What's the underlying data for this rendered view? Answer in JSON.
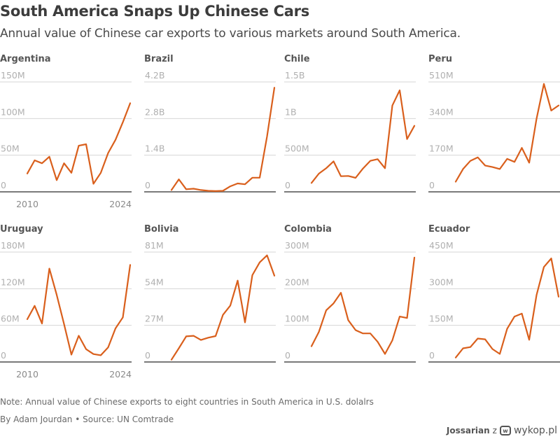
{
  "header": {
    "title": "South America Snaps Up Chinese Cars",
    "subtitle": "Annual value of Chinese car exports to various markets around South America."
  },
  "footer": {
    "note": "Note: Annual value of Chinese exports to eight countries in South America in U.S. dolalrs",
    "byline": "By Adam Jourdan • Source: UN Comtrade"
  },
  "watermark": {
    "user": "Jossarian",
    "joiner": "z",
    "logo_icon": "wykop-logo-icon",
    "logo_glyph": "w",
    "site": "wykop.pl"
  },
  "colors": {
    "line": "#d95f1c",
    "grid": "#d6d6d6",
    "baseline": "#7a7a7a"
  },
  "chart_data": [
    {
      "type": "line",
      "title": "Argentina",
      "unit": "USD millions",
      "x": [
        2010,
        2011,
        2012,
        2013,
        2014,
        2015,
        2016,
        2017,
        2018,
        2019,
        2020,
        2021,
        2022,
        2023,
        2024
      ],
      "values": [
        25,
        43,
        39,
        48,
        16,
        39,
        26,
        63,
        65,
        11,
        26,
        53,
        71,
        95,
        121
      ],
      "yticks": [
        0,
        50,
        100,
        150
      ],
      "ytick_labels": [
        "0",
        "50M",
        "100M",
        "150M"
      ],
      "ylim": [
        0,
        150
      ],
      "xtick_labels": [
        "2010",
        "2024"
      ],
      "grid": true
    },
    {
      "type": "line",
      "title": "Brazil",
      "unit": "USD millions",
      "x": [
        2010,
        2011,
        2012,
        2013,
        2014,
        2015,
        2016,
        2017,
        2018,
        2019,
        2020,
        2021,
        2022,
        2023,
        2024
      ],
      "values": [
        70,
        480,
        100,
        120,
        70,
        40,
        30,
        40,
        210,
        320,
        290,
        540,
        540,
        2120,
        3980
      ],
      "yticks": [
        0,
        1400,
        2800,
        4200
      ],
      "ytick_labels": [
        "0",
        "1.4B",
        "2.8B",
        "4.2B"
      ],
      "ylim": [
        0,
        4200
      ],
      "xtick_labels": [],
      "grid": true
    },
    {
      "type": "line",
      "title": "Chile",
      "unit": "USD millions",
      "x": [
        2010,
        2011,
        2012,
        2013,
        2014,
        2015,
        2016,
        2017,
        2018,
        2019,
        2020,
        2021,
        2022,
        2023,
        2024
      ],
      "values": [
        121,
        248,
        322,
        417,
        213,
        217,
        191,
        318,
        423,
        446,
        322,
        1178,
        1385,
        720,
        901
      ],
      "yticks": [
        0,
        500,
        1000,
        1500
      ],
      "ytick_labels": [
        "0",
        "500M",
        "1B",
        "1.5B"
      ],
      "ylim": [
        0,
        1500
      ],
      "xtick_labels": [],
      "grid": true
    },
    {
      "type": "line",
      "title": "Peru",
      "unit": "USD millions",
      "x": [
        2010,
        2011,
        2012,
        2013,
        2014,
        2015,
        2016,
        2017,
        2018,
        2019,
        2020,
        2021,
        2022,
        2023,
        2024
      ],
      "values": [
        47,
        106,
        144,
        160,
        122,
        115,
        106,
        153,
        139,
        204,
        135,
        339,
        501,
        377,
        401
      ],
      "yticks": [
        0,
        170,
        340,
        510
      ],
      "ytick_labels": [
        "0",
        "170M",
        "340M",
        "510M"
      ],
      "ylim": [
        0,
        510
      ],
      "xtick_labels": [],
      "grid": true
    },
    {
      "type": "line",
      "title": "Uruguay",
      "unit": "USD millions",
      "x": [
        2010,
        2011,
        2012,
        2013,
        2014,
        2015,
        2016,
        2017,
        2018,
        2019,
        2020,
        2021,
        2022,
        2023,
        2024
      ],
      "values": [
        70,
        92,
        63,
        153,
        110,
        62,
        12,
        43,
        21,
        13,
        11,
        24,
        55,
        73,
        159
      ],
      "yticks": [
        0,
        60,
        120,
        180
      ],
      "ytick_labels": [
        "0",
        "60M",
        "120M",
        "180M"
      ],
      "ylim": [
        0,
        180
      ],
      "xtick_labels": [
        "2010",
        "2024"
      ],
      "grid": true
    },
    {
      "type": "line",
      "title": "Bolivia",
      "unit": "USD millions",
      "x": [
        2010,
        2011,
        2012,
        2013,
        2014,
        2015,
        2016,
        2017,
        2018,
        2019,
        2020,
        2021,
        2022,
        2023,
        2024
      ],
      "values": [
        1.7,
        10.1,
        18.9,
        19.3,
        16.2,
        17.9,
        19.1,
        34.7,
        41.6,
        60.0,
        29.2,
        64.0,
        73.4,
        78.6,
        63.6
      ],
      "yticks": [
        0,
        27,
        54,
        81
      ],
      "ytick_labels": [
        "0",
        "27M",
        "54M",
        "81M"
      ],
      "ylim": [
        0,
        81
      ],
      "xtick_labels": [],
      "grid": true
    },
    {
      "type": "line",
      "title": "Colombia",
      "unit": "USD millions",
      "x": [
        2010,
        2011,
        2012,
        2013,
        2014,
        2015,
        2016,
        2017,
        2018,
        2019,
        2020,
        2021,
        2022,
        2023,
        2024
      ],
      "values": [
        43,
        82,
        141,
        160,
        189,
        114,
        87,
        78,
        78,
        55,
        22,
        59,
        124,
        120,
        285
      ],
      "yticks": [
        0,
        100,
        200,
        300
      ],
      "ytick_labels": [
        "0",
        "100M",
        "200M",
        "300M"
      ],
      "ylim": [
        0,
        300
      ],
      "xtick_labels": [],
      "grid": true
    },
    {
      "type": "line",
      "title": "Ecuador",
      "unit": "USD millions",
      "x": [
        2010,
        2011,
        2012,
        2013,
        2014,
        2015,
        2016,
        2017,
        2018,
        2019,
        2020,
        2021,
        2022,
        2023,
        2024
      ],
      "values": [
        18,
        56,
        61,
        96,
        93,
        53,
        33,
        136,
        186,
        198,
        91,
        274,
        389,
        424,
        267
      ],
      "yticks": [
        0,
        150,
        300,
        450
      ],
      "ytick_labels": [
        "0",
        "150M",
        "300M",
        "450M"
      ],
      "ylim": [
        0,
        450
      ],
      "xtick_labels": [],
      "grid": true
    }
  ]
}
